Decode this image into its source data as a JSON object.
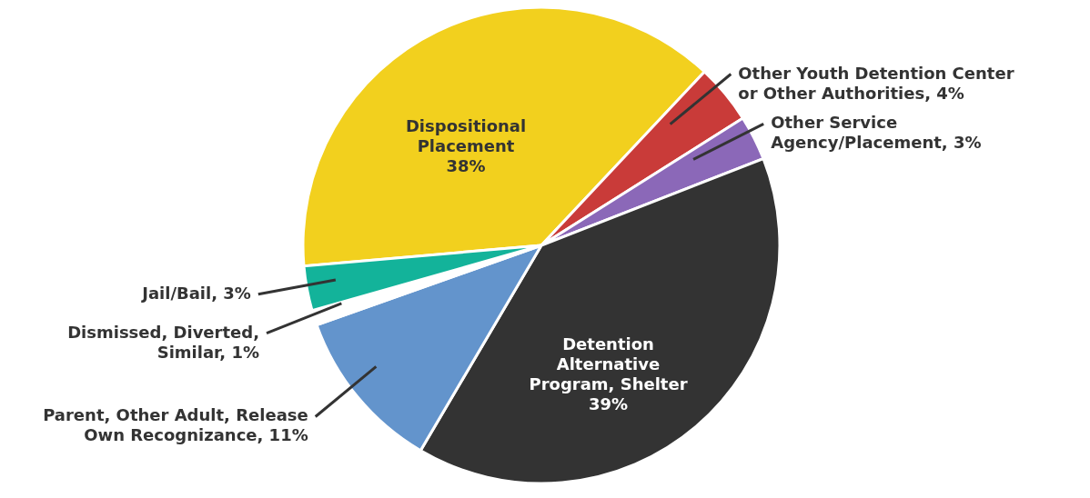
{
  "chart_data": {
    "type": "pie",
    "categories": [
      "Dispositional Placement",
      "Other Youth Detention Center or Other Authorities",
      "Other Service Agency/Placement",
      "Detention Alternative Program, Shelter",
      "Parent, Other Adult, Release Own Recognizance",
      "Dismissed, Diverted, Similar",
      "Jail/Bail"
    ],
    "values": [
      38,
      4,
      3,
      39,
      11,
      1,
      3
    ],
    "value_labels": [
      "38%",
      "4%",
      "3%",
      "39%",
      "11%",
      "1%",
      "3%"
    ],
    "colors": [
      "#f2d01e",
      "#c93b39",
      "#8b68b8",
      "#333333",
      "#6394cc",
      "#ffffff",
      "#13b39a"
    ]
  }
}
